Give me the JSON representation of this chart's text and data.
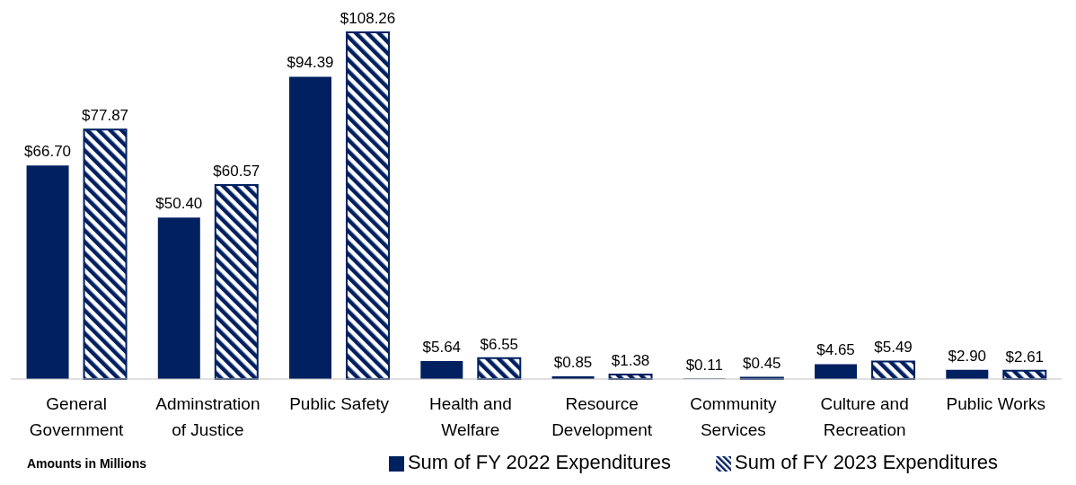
{
  "chart_data": {
    "type": "bar",
    "categories": [
      "General Government",
      "Adminstration of Justice",
      "Public Safety",
      "Health and Welfare",
      "Resource Development",
      "Community Services",
      "Culture and Recreation",
      "Public Works"
    ],
    "series": [
      {
        "name": "Sum of FY 2022 Expenditures",
        "color": "#002060",
        "values": [
          66.7,
          50.4,
          94.39,
          5.64,
          0.85,
          0.11,
          4.65,
          2.9
        ],
        "value_labels": [
          "$66.70",
          "$50.40",
          "$94.39",
          "$5.64",
          "$0.85",
          "$0.11",
          "$4.65",
          "$2.90"
        ]
      },
      {
        "name": "Sum of FY 2023 Expenditures",
        "color": "#002060",
        "values": [
          77.87,
          60.57,
          108.26,
          6.55,
          1.38,
          0.45,
          5.49,
          2.61
        ],
        "value_labels": [
          "$77.87",
          "$60.57",
          "$108.26",
          "$6.55",
          "$1.38",
          "$0.45",
          "$5.49",
          "$2.61"
        ]
      }
    ],
    "legend": "bottom",
    "annotations": [
      "Amounts in Millions"
    ]
  }
}
